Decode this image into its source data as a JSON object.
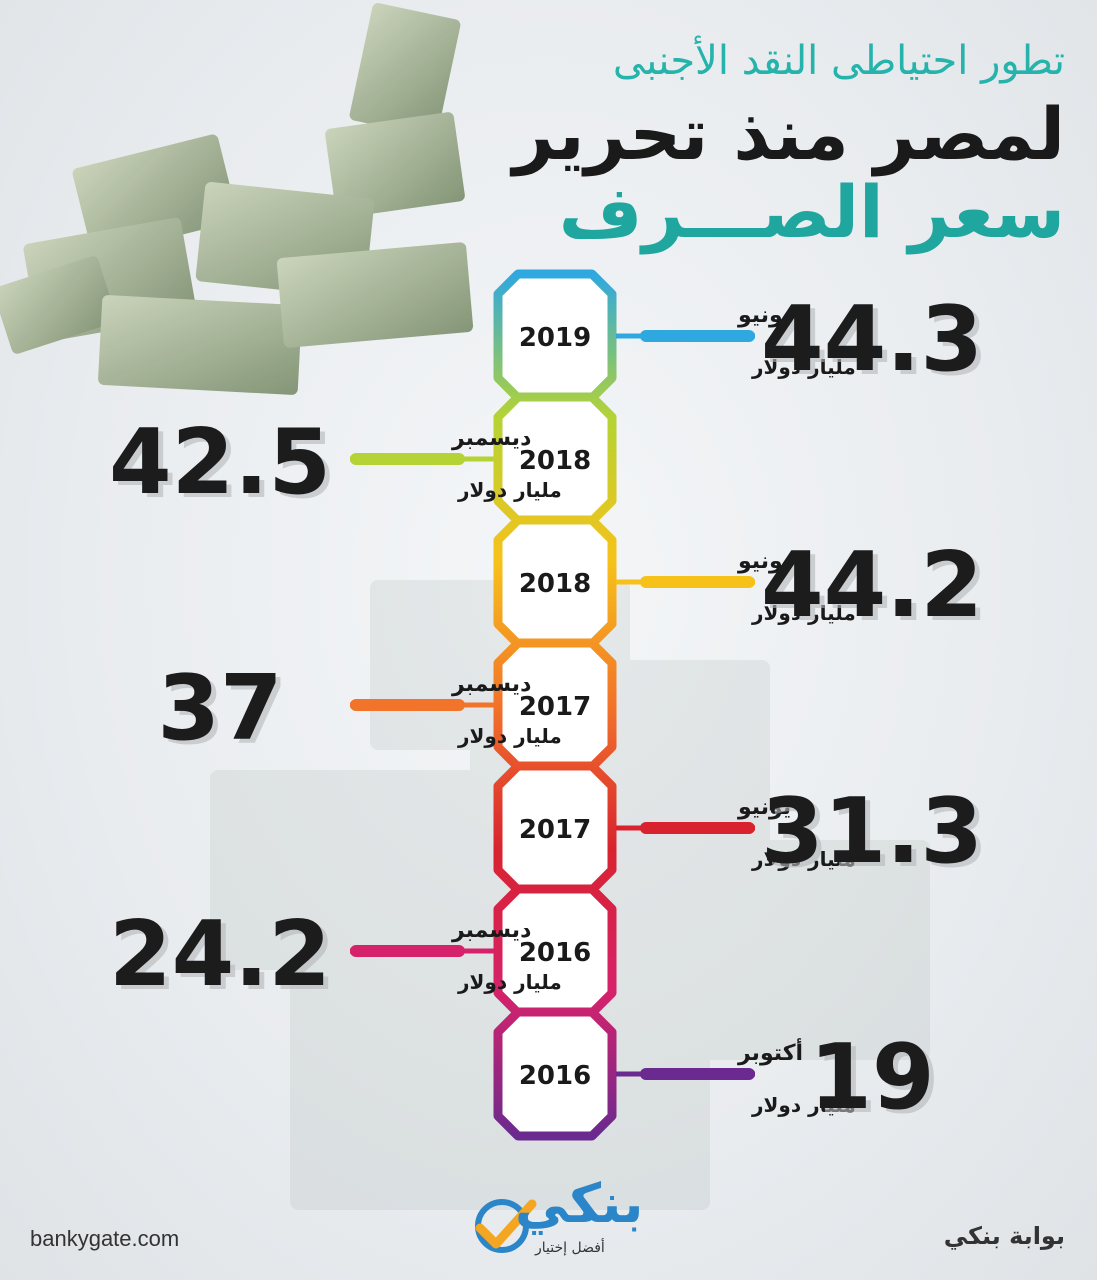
{
  "header": {
    "line1": "تطور احتياطى النقد الأجنبى",
    "line2": "لمصر منذ تحرير",
    "line3": "سعر الصـــرف"
  },
  "footer": {
    "website": "bankygate.com",
    "brand_ar": "بوابة بنكي",
    "logo_word": "بنكي",
    "logo_tagline": "أفضل إختيار"
  },
  "chart_data": {
    "type": "timeline",
    "unit": "مليار دولار",
    "points": [
      {
        "year": "2019",
        "month": "يونيو",
        "value": "44.3",
        "side": "right",
        "color": "#2fa8e0"
      },
      {
        "year": "2018",
        "month": "ديسمبر",
        "value": "42.5",
        "side": "left",
        "color": "#b5d334"
      },
      {
        "year": "2018",
        "month": "يونيو",
        "value": "44.2",
        "side": "right",
        "color": "#f6c21a"
      },
      {
        "year": "2017",
        "month": "ديسمبر",
        "value": "37",
        "side": "left",
        "color": "#f2732a"
      },
      {
        "year": "2017",
        "month": "يونيو",
        "value": "31.3",
        "side": "right",
        "color": "#d8232f"
      },
      {
        "year": "2016",
        "month": "ديسمبر",
        "value": "24.2",
        "side": "left",
        "color": "#d6226b"
      },
      {
        "year": "2016",
        "month": "أكتوبر",
        "value": "19",
        "side": "right",
        "color": "#6a2a8f"
      }
    ]
  }
}
